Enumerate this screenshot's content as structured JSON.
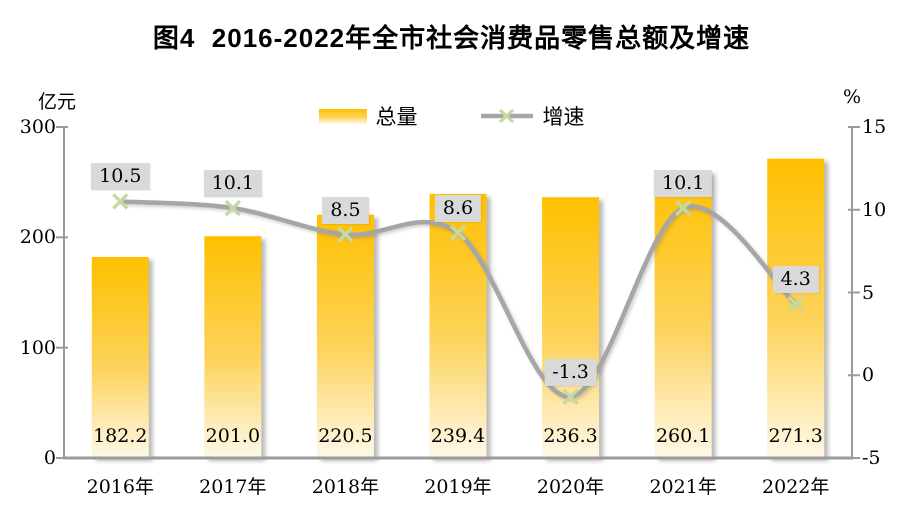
{
  "title": "图4  2016-2022年全市社会消费品零售总额及增速",
  "left_axis": {
    "unit": "亿元",
    "ticks": [
      300,
      200,
      100,
      0
    ]
  },
  "right_axis": {
    "unit": "%",
    "ticks": [
      15,
      10,
      5,
      0,
      -5
    ]
  },
  "legend": {
    "bar_label": "总量",
    "line_label": "增速"
  },
  "chart_data": {
    "type": "bar+line combo",
    "title": "图4 2016-2022年全市社会消费品零售总额及增速",
    "categories": [
      "2016年",
      "2017年",
      "2018年",
      "2019年",
      "2020年",
      "2021年",
      "2022年"
    ],
    "series": [
      {
        "name": "总量",
        "type": "bar",
        "axis": "left",
        "unit": "亿元",
        "values": [
          182.2,
          201.0,
          220.5,
          239.4,
          236.3,
          260.1,
          271.3
        ]
      },
      {
        "name": "增速",
        "type": "line",
        "axis": "right",
        "unit": "%",
        "values": [
          10.5,
          10.1,
          8.5,
          8.6,
          -1.3,
          10.1,
          4.3
        ]
      }
    ],
    "left_ylim": [
      0,
      300
    ],
    "right_ylim": [
      -5,
      15
    ],
    "grid": false,
    "legend_position": "top-center",
    "data_labels": "bar values inside bar bottoms, line values in gray boxes above markers"
  },
  "colors": {
    "bar_top": "#FFC000",
    "bar_mid": "#FDD35B",
    "bar_bottom": "#FEF8E9",
    "line": "#A6A6A6",
    "marker": "#C6D9A1",
    "label_bg": "#D9D9D9",
    "axis": "#9B9B9B",
    "text": "#000000",
    "title": "#000000"
  }
}
